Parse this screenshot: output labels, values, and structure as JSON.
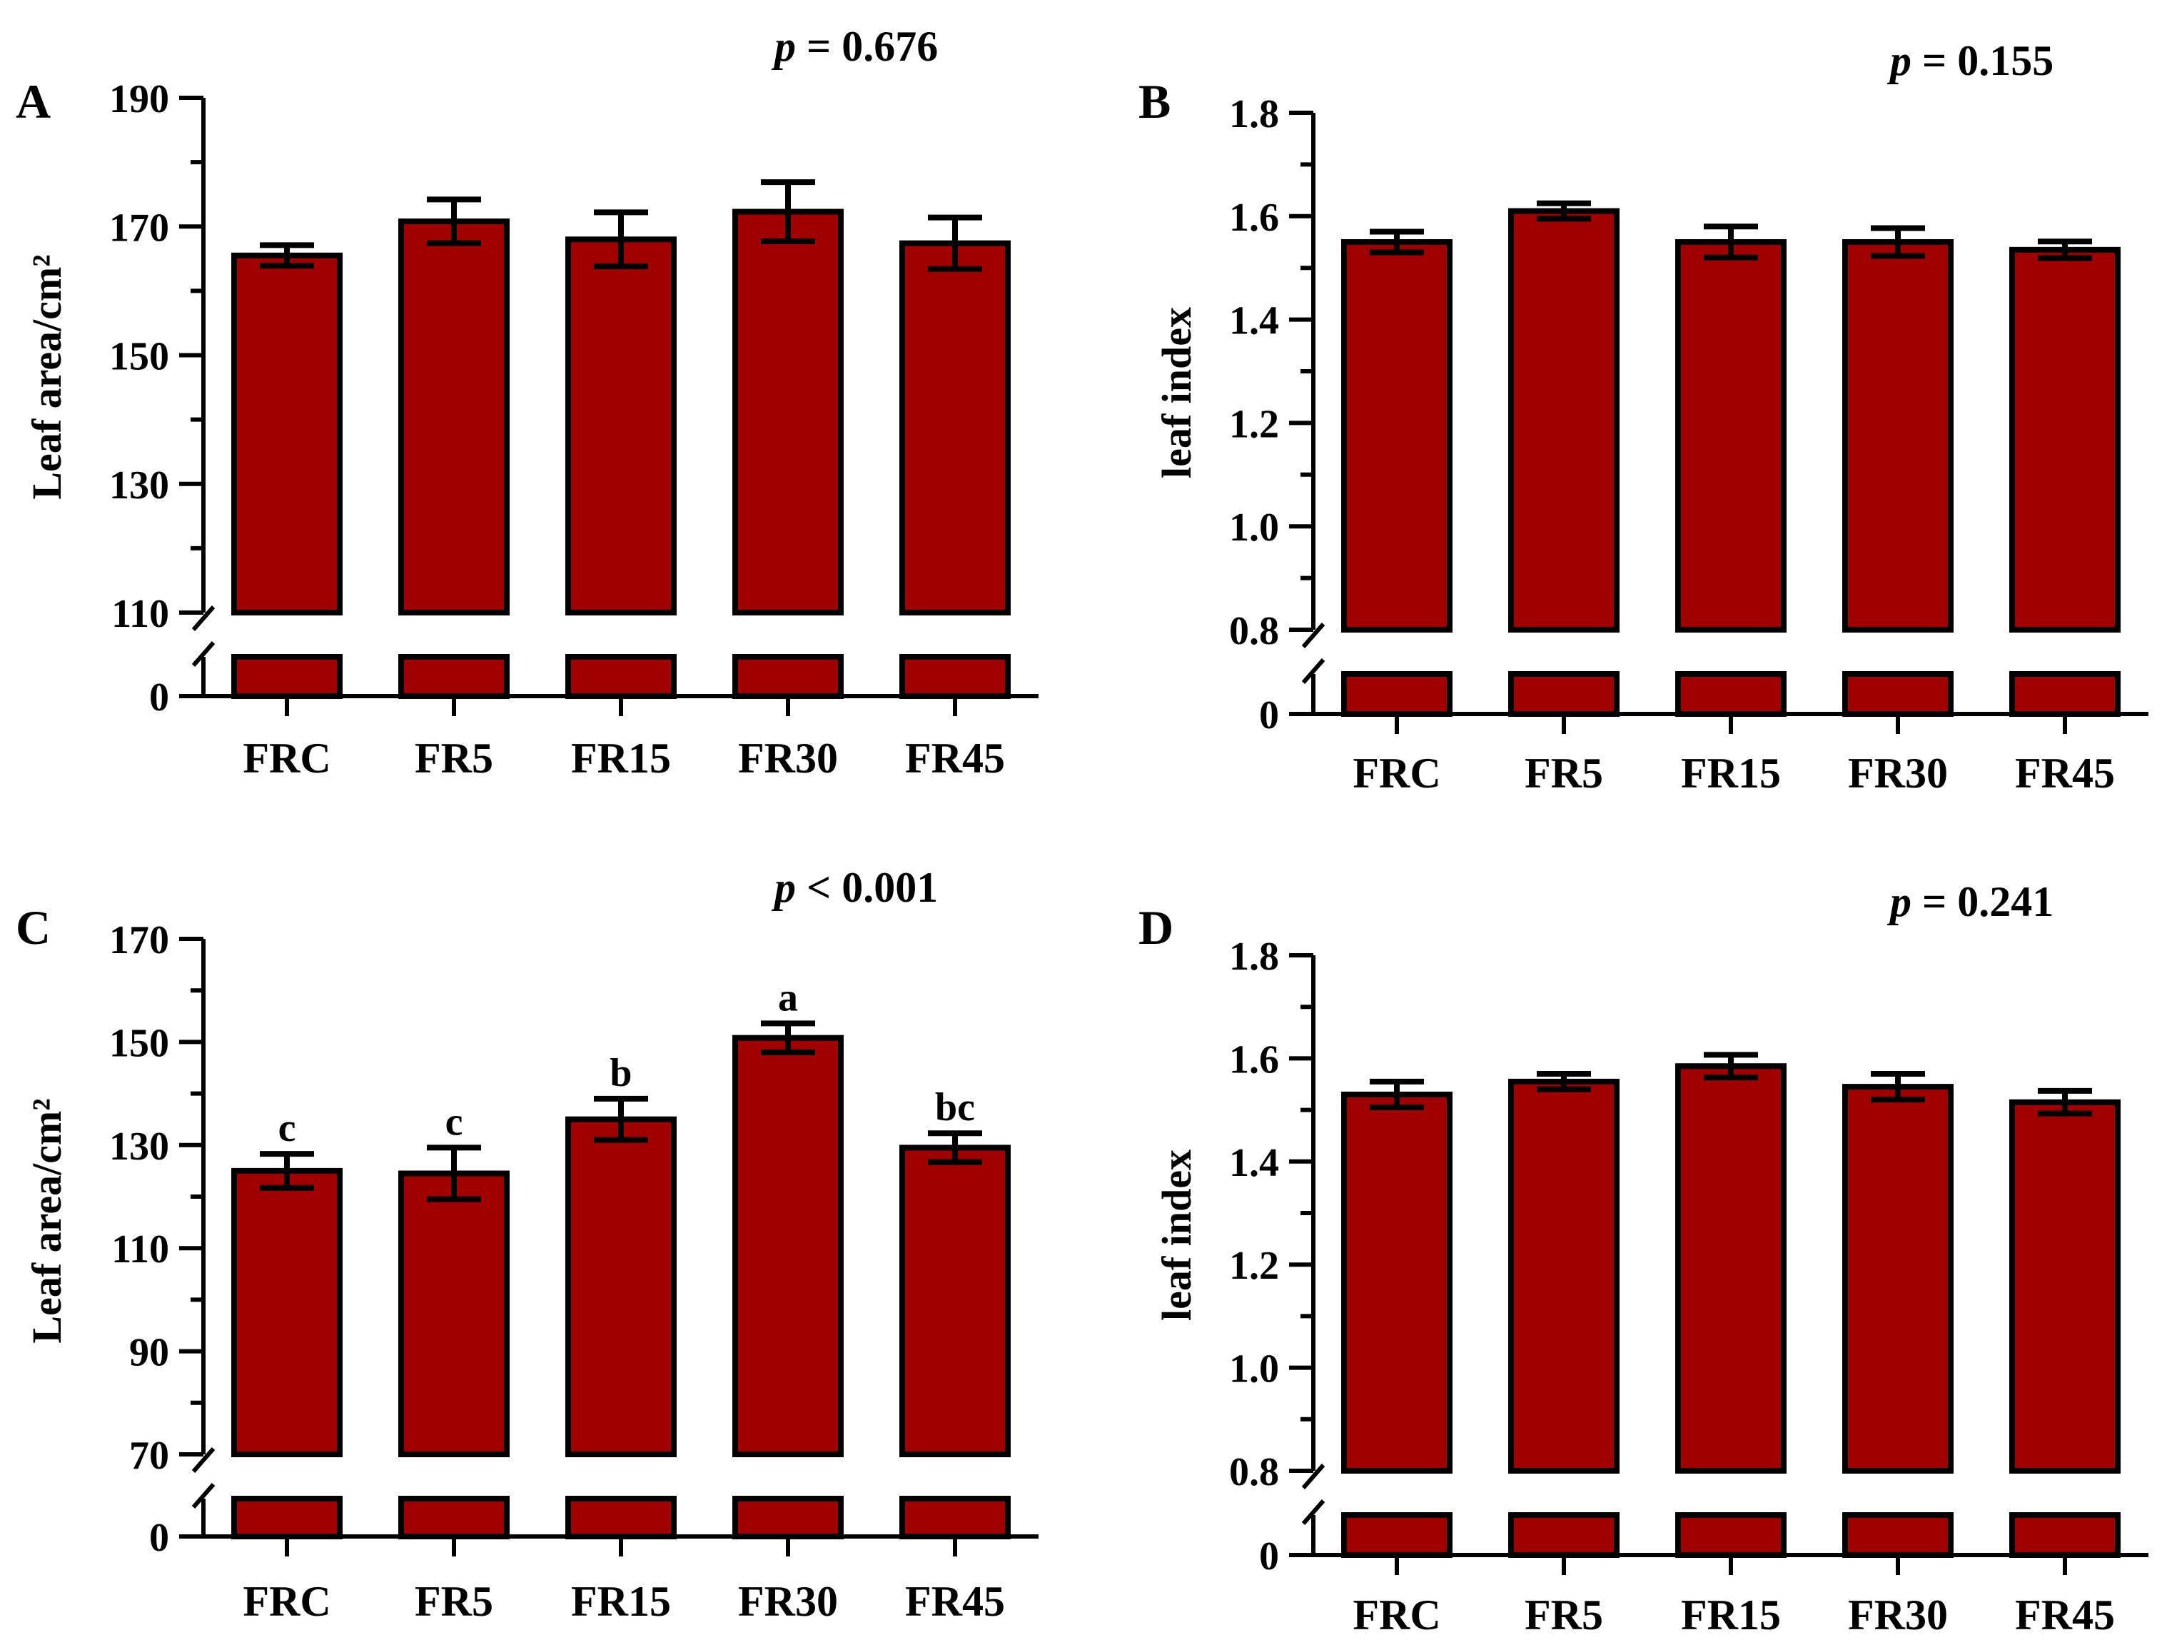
{
  "colors": {
    "bar_fill": "#a00000",
    "bar_stroke": "#000000",
    "axis": "#000000",
    "text": "#000000"
  },
  "chart_data": [
    {
      "type": "bar",
      "panel_label": "A",
      "p_label": "p",
      "p_text": " = 0.676",
      "ylabel": "Leaf area/cm²",
      "categories": [
        "FRC",
        "FR5",
        "FR15",
        "FR30",
        "FR45"
      ],
      "values": [
        165.5,
        170.8,
        168.0,
        172.3,
        167.4
      ],
      "errors": [
        1.6,
        3.4,
        4.2,
        4.6,
        4.0
      ],
      "letters": [],
      "ylim": [
        110,
        190
      ],
      "yticks": [
        110,
        130,
        150,
        170,
        190
      ],
      "ytick_labels": [
        "110",
        "130",
        "150",
        "170",
        "190"
      ],
      "break_axis": true,
      "lower_tick_label": "0",
      "grid": false
    },
    {
      "type": "bar",
      "panel_label": "B",
      "p_label": "p",
      "p_text": " = 0.155",
      "ylabel": "leaf index",
      "categories": [
        "FRC",
        "FR5",
        "FR15",
        "FR30",
        "FR45"
      ],
      "values": [
        1.55,
        1.61,
        1.55,
        1.55,
        1.535
      ],
      "errors": [
        0.02,
        0.015,
        0.03,
        0.027,
        0.016
      ],
      "letters": [],
      "ylim": [
        0.8,
        1.8
      ],
      "yticks": [
        0.8,
        1.0,
        1.2,
        1.4,
        1.6,
        1.8
      ],
      "ytick_labels": [
        "0.8",
        "1.0",
        "1.2",
        "1.4",
        "1.6",
        "1.8"
      ],
      "break_axis": true,
      "lower_tick_label": "0",
      "grid": false
    },
    {
      "type": "bar",
      "panel_label": "C",
      "p_label": "p",
      "p_text": " < 0.001",
      "ylabel": "Leaf area/cm²",
      "categories": [
        "FRC",
        "FR5",
        "FR15",
        "FR30",
        "FR45"
      ],
      "values": [
        125.0,
        124.5,
        135.0,
        150.8,
        129.5
      ],
      "errors": [
        3.3,
        5.0,
        4.0,
        2.8,
        2.8
      ],
      "letters": [
        "c",
        "c",
        "b",
        "a",
        "bc"
      ],
      "ylim": [
        70,
        170
      ],
      "yticks": [
        70,
        90,
        110,
        130,
        150,
        170
      ],
      "ytick_labels": [
        "70",
        "90",
        "110",
        "130",
        "150",
        "170"
      ],
      "break_axis": true,
      "lower_tick_label": "0",
      "grid": false
    },
    {
      "type": "bar",
      "panel_label": "D",
      "p_label": "p",
      "p_text": " = 0.241",
      "ylabel": "leaf index",
      "categories": [
        "FRC",
        "FR5",
        "FR15",
        "FR30",
        "FR45"
      ],
      "values": [
        1.53,
        1.555,
        1.585,
        1.545,
        1.515
      ],
      "errors": [
        0.025,
        0.015,
        0.022,
        0.025,
        0.022
      ],
      "letters": [],
      "ylim": [
        0.8,
        1.8
      ],
      "yticks": [
        0.8,
        1.0,
        1.2,
        1.4,
        1.6,
        1.8
      ],
      "ytick_labels": [
        "0.8",
        "1.0",
        "1.2",
        "1.4",
        "1.6",
        "1.8"
      ],
      "break_axis": true,
      "lower_tick_label": "0",
      "grid": false
    }
  ]
}
